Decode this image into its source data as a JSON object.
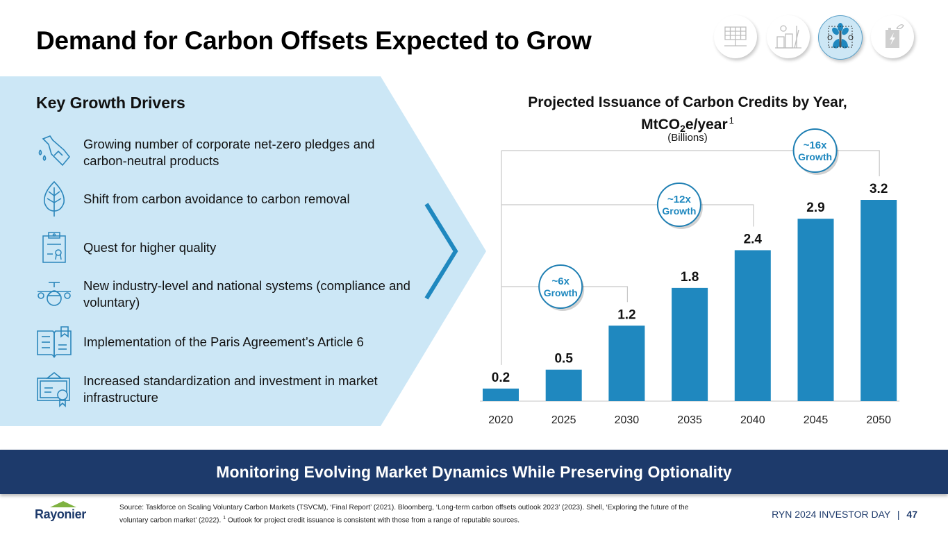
{
  "title": "Demand for Carbon Offsets Expected to Grow",
  "top_icons": [
    {
      "name": "solar-panel-icon",
      "active": false
    },
    {
      "name": "industrial-plant-icon",
      "active": false
    },
    {
      "name": "carbon-capture-tree-icon",
      "active": true
    },
    {
      "name": "battery-leaf-icon",
      "active": false
    }
  ],
  "drivers": {
    "heading": "Key Growth Drivers",
    "items": [
      {
        "icon": "fuel-nozzle-icon",
        "text": "Growing number of corporate net-zero pledges and carbon-neutral products"
      },
      {
        "icon": "leaf-icon",
        "text": "Shift from carbon avoidance to carbon removal"
      },
      {
        "icon": "certificate-clipboard-icon",
        "text": "Quest for higher quality"
      },
      {
        "icon": "airplane-icon",
        "text": "New industry-level and national systems (compliance and voluntary)"
      },
      {
        "icon": "open-book-icon",
        "text": "Implementation of the Paris Agreement’s Article 6"
      },
      {
        "icon": "framed-certificate-icon",
        "text": "Increased standardization and investment in market infrastructure"
      }
    ]
  },
  "chart": {
    "title_line1": "Projected Issuance of Carbon Credits by Year,",
    "title_line2_pre": "MtCO",
    "title_line2_sub": "2",
    "title_line2_post": "e/year",
    "title_footnote": "1",
    "subtitle": "(Billions)"
  },
  "chart_data": {
    "type": "bar",
    "title": "Projected Issuance of Carbon Credits by Year, MtCO2e/year",
    "subtitle": "(Billions)",
    "xlabel": "",
    "ylabel": "",
    "categories": [
      "2020",
      "2025",
      "2030",
      "2035",
      "2040",
      "2045",
      "2050"
    ],
    "values": [
      0.2,
      0.5,
      1.2,
      1.8,
      2.4,
      2.9,
      3.2
    ],
    "data_labels": [
      "0.2",
      "0.5",
      "1.2",
      "1.8",
      "2.4",
      "2.9",
      "3.2"
    ],
    "ylim": [
      0,
      3.2
    ],
    "grid": false,
    "bar_color": "#1f88bf",
    "annotations": [
      {
        "from": "2020",
        "to": "2030",
        "line1": "~6x",
        "line2": "Growth"
      },
      {
        "from": "2020",
        "to": "2040",
        "line1": "~12x",
        "line2": "Growth"
      },
      {
        "from": "2020",
        "to": "2050",
        "line1": "~16x",
        "line2": "Growth"
      }
    ]
  },
  "banner": "Monitoring Evolving Market Dynamics While Preserving Optionality",
  "footer": {
    "logo": "Rayonier",
    "source_text": "Source: Taskforce on Scaling Voluntary Carbon Markets (TSVCM), ‘Final Report’ (2021). Bloomberg, ‘Long-term carbon offsets outlook 2023’ (2023). Shell, ‘Exploring the future of the voluntary carbon market’ (2022).",
    "source_footnote_mark": "1",
    "source_footnote_text": "Outlook for project credit issuance is consistent with those from a range of reputable sources.",
    "event": "RYN 2024 INVESTOR DAY",
    "separator": "|",
    "page_number": "47"
  },
  "colors": {
    "panel": "#cce7f6",
    "accent": "#1f88bf",
    "navy": "#1d3a6b",
    "logo_green": "#7fb241"
  }
}
